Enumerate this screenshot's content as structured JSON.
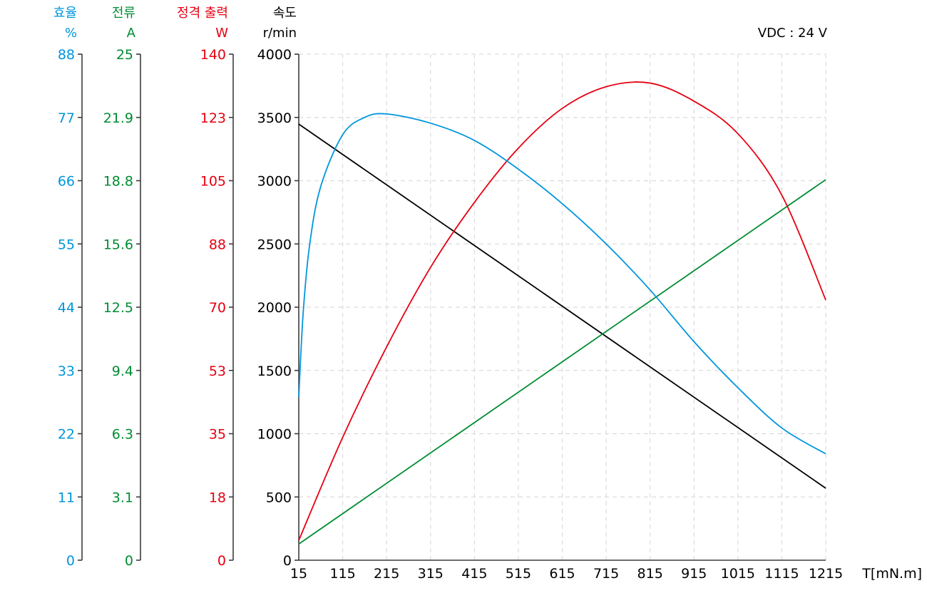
{
  "chart_data": {
    "type": "line",
    "title": "",
    "annotation": "VDC : 24 V",
    "xlabel": "T[mN.m]",
    "x_ticks": [
      15,
      115,
      215,
      315,
      415,
      515,
      615,
      715,
      815,
      915,
      1015,
      1115,
      1215
    ],
    "xlim": [
      15,
      1215
    ],
    "grid": true,
    "legend": "none (axes color-coded)",
    "axes": [
      {
        "id": "efficiency",
        "title": "효율",
        "unit": "%",
        "color": "#0096DC",
        "ticks": [
          "0",
          "11",
          "22",
          "33",
          "44",
          "55",
          "66",
          "77",
          "88"
        ],
        "range": [
          0,
          88
        ]
      },
      {
        "id": "current",
        "title": "전류",
        "unit": "A",
        "color": "#008C32",
        "ticks": [
          "0",
          "3.1",
          "6.3",
          "9.4",
          "12.5",
          "15.6",
          "18.8",
          "21.9",
          "25"
        ],
        "range": [
          0,
          25
        ]
      },
      {
        "id": "output",
        "title": "정격 출력",
        "unit": "W",
        "color": "#E60012",
        "ticks": [
          "0",
          "18",
          "35",
          "53",
          "70",
          "88",
          "105",
          "123",
          "140"
        ],
        "range": [
          0,
          140
        ]
      },
      {
        "id": "speed",
        "title": "속도",
        "unit": "r/min",
        "color": "#000000",
        "ticks": [
          "0",
          "500",
          "1000",
          "1500",
          "2000",
          "2500",
          "3000",
          "3500",
          "4000"
        ],
        "range": [
          0,
          4000
        ]
      }
    ],
    "series": [
      {
        "name": "속도 (r/min)",
        "axis": "speed",
        "color": "#000000",
        "x": [
          15,
          1215
        ],
        "values": [
          3447,
          569
        ]
      },
      {
        "name": "전류 (A)",
        "axis": "current",
        "color": "#008C32",
        "x": [
          15,
          1215
        ],
        "values": [
          0.8,
          18.8
        ]
      },
      {
        "name": "정격 출력 (W)",
        "axis": "output",
        "color": "#E60012",
        "x": [
          15,
          115,
          215,
          315,
          415,
          515,
          615,
          715,
          815,
          915,
          1015,
          1115,
          1215
        ],
        "values": [
          5.5,
          34,
          59,
          81,
          99,
          114,
          125,
          131,
          132,
          127,
          118,
          101,
          72
        ]
      },
      {
        "name": "효율 (%)",
        "axis": "efficiency",
        "color": "#0096DC",
        "x": [
          15,
          25,
          40,
          65,
          115,
          165,
          215,
          315,
          415,
          515,
          615,
          715,
          815,
          915,
          1015,
          1115,
          1215
        ],
        "values": [
          28.4,
          43,
          55,
          65,
          74,
          77,
          77.6,
          76,
          73,
          68,
          62,
          55,
          47,
          38,
          30,
          23,
          18.5
        ]
      }
    ]
  },
  "labels": {
    "eff_title": "효율",
    "eff_unit": "%",
    "cur_title": "전류",
    "cur_unit": "A",
    "out_title": "정격 출력",
    "out_unit": "W",
    "spd_title": "속도",
    "spd_unit": "r/min",
    "vdc": "VDC : 24 V",
    "xlabel": "T[mN.m]"
  }
}
